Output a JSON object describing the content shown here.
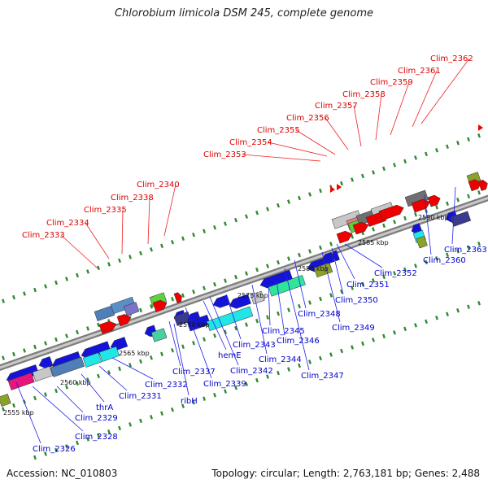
{
  "title": "Chlorobium limicola DSM 245, complete genome",
  "footer": {
    "accession": "Accession: NC_010803",
    "summary": "Topology: circular; Length: 2,763,181 bp; Genes: 2,488"
  },
  "colors": {
    "forward_labels": "#dd0000",
    "reverse_labels": "#0000cc",
    "backbone": "#999999"
  },
  "ticks": [
    "2555 kbp",
    "2560 kbp",
    "2565 kbp",
    "2570 kbp",
    "2575 kbp",
    "2580 kbp",
    "2585 kbp",
    "2590 kbp"
  ],
  "forward_labels": [
    "Clim_2333",
    "Clim_2334",
    "Clim_2335",
    "Clim_2338",
    "Clim_2340",
    "Clim_2353",
    "Clim_2354",
    "Clim_2355",
    "Clim_2356",
    "Clim_2357",
    "Clim_2358",
    "Clim_2359",
    "Clim_2361",
    "Clim_2362"
  ],
  "reverse_labels": [
    "Clim_2326",
    "Clim_2328",
    "Clim_2329",
    "thrA",
    "Clim_2331",
    "Clim_2332",
    "ribH",
    "Clim_2337",
    "Clim_2339",
    "hemE",
    "Clim_2342",
    "Clim_2343",
    "Clim_2344",
    "Clim_2345",
    "Clim_2346",
    "Clim_2347",
    "Clim_2348",
    "Clim_2349",
    "Clim_2350",
    "Clim_2351",
    "Clim_2352",
    "Clim_2360",
    "Clim_2363"
  ]
}
